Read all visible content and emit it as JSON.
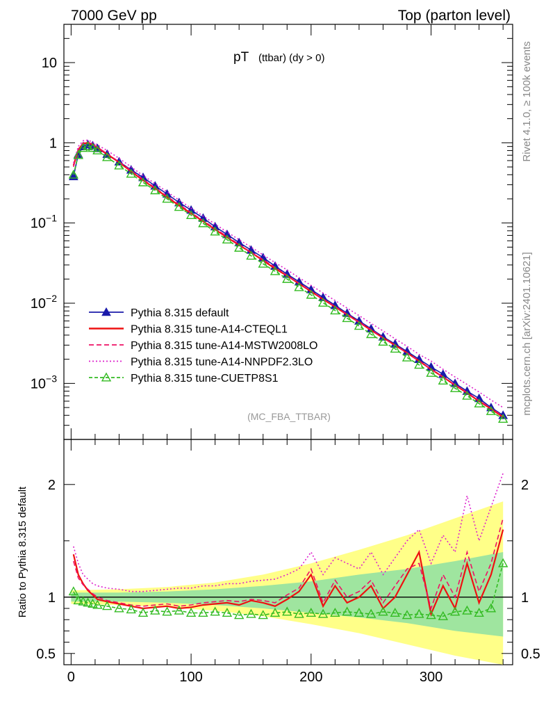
{
  "header": {
    "left": "7000 GeV pp",
    "right": "Top (parton level)"
  },
  "side_labels": {
    "rivet": "Rivet 4.1.0, ≥ 100k events",
    "mcplots": "mcplots.cern.ch [arXiv:2401.10621]"
  },
  "chart_data": [
    {
      "panel": "main",
      "type": "line",
      "title_main": "pT",
      "title_sub": "(ttbar) (dy > 0)",
      "analysis_label": "(MC_FBA_TTBAR)",
      "xlabel": "",
      "ylabel": "",
      "xlim": [
        -6,
        368
      ],
      "ylim": [
        0.0002,
        30
      ],
      "yscale": "log",
      "y_ticks": [
        {
          "value": 10,
          "base": "10",
          "exp": ""
        },
        {
          "value": 1,
          "base": "1",
          "exp": ""
        },
        {
          "value": 0.1,
          "base": "10",
          "exp": "−1"
        },
        {
          "value": 0.01,
          "base": "10",
          "exp": "−2"
        },
        {
          "value": 0.001,
          "base": "10",
          "exp": "−3"
        }
      ],
      "legend_position": "lower-left",
      "series": [
        {
          "name": "Pythia 8.315 default",
          "color": "#1a1aaa",
          "dash": "",
          "marker": "triangle-filled",
          "x": [
            2,
            6,
            10,
            14,
            18,
            22,
            30,
            40,
            50,
            60,
            70,
            80,
            90,
            100,
            110,
            120,
            130,
            140,
            150,
            160,
            170,
            180,
            190,
            200,
            210,
            220,
            230,
            240,
            250,
            260,
            270,
            280,
            290,
            300,
            310,
            320,
            330,
            340,
            350,
            360
          ],
          "y": [
            0.38,
            0.72,
            0.9,
            0.95,
            0.92,
            0.85,
            0.72,
            0.58,
            0.46,
            0.37,
            0.29,
            0.23,
            0.18,
            0.145,
            0.115,
            0.09,
            0.072,
            0.057,
            0.046,
            0.037,
            0.029,
            0.023,
            0.0185,
            0.0148,
            0.0118,
            0.0094,
            0.0075,
            0.006,
            0.0048,
            0.0038,
            0.0031,
            0.0025,
            0.002,
            0.0016,
            0.0013,
            0.001,
            0.0008,
            0.00065,
            0.0005,
            0.0004
          ]
        },
        {
          "name": "Pythia 8.315 tune-A14-CTEQL1",
          "color": "#ee1111",
          "dash": "",
          "marker": "",
          "x": [
            2,
            6,
            10,
            14,
            18,
            22,
            30,
            40,
            50,
            60,
            70,
            80,
            90,
            100,
            110,
            120,
            130,
            140,
            150,
            160,
            170,
            180,
            190,
            200,
            210,
            220,
            230,
            240,
            250,
            260,
            270,
            280,
            290,
            300,
            310,
            320,
            330,
            340,
            350,
            360
          ],
          "y": [
            0.52,
            0.82,
            0.98,
            1.0,
            0.95,
            0.87,
            0.72,
            0.57,
            0.44,
            0.34,
            0.27,
            0.21,
            0.165,
            0.132,
            0.105,
            0.083,
            0.066,
            0.053,
            0.043,
            0.034,
            0.027,
            0.022,
            0.0175,
            0.014,
            0.0112,
            0.009,
            0.0072,
            0.0058,
            0.0046,
            0.0037,
            0.003,
            0.0024,
            0.0019,
            0.0015,
            0.0012,
            0.00095,
            0.00076,
            0.0006,
            0.00048,
            0.00038
          ]
        },
        {
          "name": "Pythia 8.315 tune-A14-MSTW2008LO",
          "color": "#ee1166",
          "dash": "7,4",
          "marker": "",
          "x": [
            2,
            6,
            10,
            14,
            18,
            22,
            30,
            40,
            50,
            60,
            70,
            80,
            90,
            100,
            110,
            120,
            130,
            140,
            150,
            160,
            170,
            180,
            190,
            200,
            210,
            220,
            230,
            240,
            250,
            260,
            270,
            280,
            290,
            300,
            310,
            320,
            330,
            340,
            350,
            360
          ],
          "y": [
            0.5,
            0.84,
            1.0,
            1.02,
            0.96,
            0.88,
            0.73,
            0.58,
            0.45,
            0.35,
            0.275,
            0.215,
            0.17,
            0.135,
            0.107,
            0.085,
            0.068,
            0.054,
            0.043,
            0.035,
            0.028,
            0.0222,
            0.0177,
            0.0142,
            0.0113,
            0.0091,
            0.0073,
            0.0058,
            0.0047,
            0.0037,
            0.003,
            0.0024,
            0.0019,
            0.0015,
            0.0012,
            0.00096,
            0.00077,
            0.00061,
            0.00049,
            0.00039
          ]
        },
        {
          "name": "Pythia 8.315 tune-A14-NNPDF2.3LO",
          "color": "#dd22cc",
          "dash": "2,3",
          "marker": "",
          "x": [
            2,
            6,
            10,
            14,
            18,
            22,
            30,
            40,
            50,
            60,
            70,
            80,
            90,
            100,
            110,
            120,
            130,
            140,
            150,
            160,
            170,
            180,
            190,
            200,
            210,
            220,
            230,
            240,
            250,
            260,
            270,
            280,
            290,
            300,
            310,
            320,
            330,
            340,
            350,
            360
          ],
          "y": [
            0.56,
            0.9,
            1.06,
            1.08,
            1.02,
            0.94,
            0.8,
            0.64,
            0.5,
            0.39,
            0.31,
            0.245,
            0.193,
            0.153,
            0.122,
            0.097,
            0.077,
            0.062,
            0.05,
            0.04,
            0.032,
            0.026,
            0.0208,
            0.0167,
            0.0134,
            0.0108,
            0.0087,
            0.007,
            0.0056,
            0.0045,
            0.0036,
            0.0029,
            0.0023,
            0.0019,
            0.0015,
            0.0012,
            0.00097,
            0.00078,
            0.00062,
            0.0005
          ]
        },
        {
          "name": "Pythia 8.315 tune-CUETP8S1",
          "color": "#33bb22",
          "dash": "5,3",
          "marker": "triangle-open",
          "x": [
            2,
            6,
            10,
            14,
            18,
            22,
            30,
            40,
            50,
            60,
            70,
            80,
            90,
            100,
            110,
            120,
            130,
            140,
            150,
            160,
            170,
            180,
            190,
            200,
            210,
            220,
            230,
            240,
            250,
            260,
            270,
            280,
            290,
            300,
            310,
            320,
            330,
            340,
            350,
            360
          ],
          "y": [
            0.4,
            0.7,
            0.86,
            0.9,
            0.86,
            0.8,
            0.66,
            0.52,
            0.41,
            0.32,
            0.255,
            0.2,
            0.158,
            0.125,
            0.099,
            0.078,
            0.062,
            0.049,
            0.039,
            0.031,
            0.025,
            0.02,
            0.0158,
            0.0127,
            0.0101,
            0.0081,
            0.0065,
            0.0052,
            0.0041,
            0.0033,
            0.0027,
            0.0021,
            0.0017,
            0.00135,
            0.00108,
            0.00087,
            0.0007,
            0.00056,
            0.00045,
            0.00036
          ]
        }
      ]
    },
    {
      "panel": "ratio",
      "type": "line",
      "ylabel": "Ratio to Pythia 8.315 default",
      "xlim": [
        -6,
        368
      ],
      "ylim": [
        0.4,
        2.4
      ],
      "x_ticks": [
        0,
        100,
        200,
        300
      ],
      "y_ticks": [
        0.5,
        1,
        2
      ],
      "reference": 1,
      "band_inner": {
        "color": "#9fe59f",
        "x": [
          0,
          40,
          80,
          120,
          160,
          200,
          240,
          280,
          320,
          360
        ],
        "lo": [
          0.96,
          0.96,
          0.95,
          0.93,
          0.9,
          0.86,
          0.82,
          0.77,
          0.7,
          0.65
        ],
        "hi": [
          1.04,
          1.04,
          1.05,
          1.07,
          1.1,
          1.14,
          1.2,
          1.25,
          1.32,
          1.4
        ]
      },
      "band_outer": {
        "color": "#ffff88",
        "x": [
          0,
          40,
          80,
          120,
          160,
          200,
          240,
          280,
          320,
          360
        ],
        "lo": [
          0.94,
          0.93,
          0.91,
          0.88,
          0.83,
          0.76,
          0.68,
          0.58,
          0.48,
          0.4
        ],
        "hi": [
          1.06,
          1.07,
          1.09,
          1.13,
          1.2,
          1.3,
          1.42,
          1.55,
          1.7,
          1.85
        ]
      },
      "series": [
        {
          "name": "Pythia 8.315 tune-A14-CTEQL1",
          "color": "#ee1111",
          "dash": "",
          "x": [
            2,
            6,
            10,
            14,
            18,
            22,
            30,
            40,
            50,
            60,
            70,
            80,
            90,
            100,
            110,
            120,
            130,
            140,
            150,
            160,
            170,
            180,
            190,
            200,
            210,
            220,
            230,
            240,
            250,
            260,
            270,
            280,
            290,
            300,
            310,
            320,
            330,
            340,
            350,
            360
          ],
          "y": [
            1.38,
            1.2,
            1.12,
            1.06,
            1.02,
            0.98,
            0.96,
            0.94,
            0.92,
            0.9,
            0.91,
            0.92,
            0.9,
            0.91,
            0.93,
            0.94,
            0.95,
            0.93,
            0.97,
            0.95,
            0.92,
            0.98,
            1.05,
            1.2,
            0.92,
            1.1,
            0.95,
            1.0,
            1.1,
            0.9,
            1.0,
            1.2,
            1.4,
            0.85,
            1.1,
            0.9,
            1.3,
            0.95,
            1.2,
            1.6
          ]
        },
        {
          "name": "Pythia 8.315 tune-A14-MSTW2008LO",
          "color": "#ee1166",
          "dash": "7,4",
          "x": [
            2,
            6,
            10,
            14,
            18,
            22,
            30,
            40,
            50,
            60,
            70,
            80,
            90,
            100,
            110,
            120,
            130,
            140,
            150,
            160,
            170,
            180,
            190,
            200,
            210,
            220,
            230,
            240,
            250,
            260,
            270,
            280,
            290,
            300,
            310,
            320,
            330,
            340,
            350,
            360
          ],
          "y": [
            1.32,
            1.17,
            1.11,
            1.07,
            1.03,
            1.0,
            0.97,
            0.95,
            0.93,
            0.92,
            0.93,
            0.94,
            0.92,
            0.93,
            0.95,
            0.96,
            0.97,
            0.96,
            0.98,
            0.97,
            0.95,
            1.02,
            1.08,
            1.25,
            0.95,
            1.15,
            1.0,
            1.05,
            1.15,
            0.95,
            1.1,
            1.25,
            1.3,
            0.9,
            1.2,
            1.0,
            1.4,
            1.05,
            1.3,
            1.7
          ]
        },
        {
          "name": "Pythia 8.315 tune-A14-NNPDF2.3LO",
          "color": "#dd22cc",
          "dash": "2,3",
          "x": [
            2,
            6,
            10,
            14,
            18,
            22,
            30,
            40,
            50,
            60,
            70,
            80,
            90,
            100,
            110,
            120,
            130,
            140,
            150,
            160,
            170,
            180,
            190,
            200,
            210,
            220,
            230,
            240,
            250,
            260,
            270,
            280,
            290,
            300,
            310,
            320,
            330,
            340,
            350,
            360
          ],
          "y": [
            1.45,
            1.3,
            1.2,
            1.16,
            1.12,
            1.1,
            1.08,
            1.07,
            1.05,
            1.05,
            1.06,
            1.07,
            1.08,
            1.08,
            1.1,
            1.1,
            1.12,
            1.12,
            1.14,
            1.15,
            1.16,
            1.2,
            1.25,
            1.4,
            1.2,
            1.35,
            1.3,
            1.25,
            1.4,
            1.2,
            1.35,
            1.5,
            1.6,
            1.3,
            1.55,
            1.4,
            1.9,
            1.5,
            1.8,
            2.1
          ]
        },
        {
          "name": "Pythia 8.315 tune-CUETP8S1",
          "color": "#33bb22",
          "dash": "5,3",
          "x": [
            2,
            6,
            10,
            14,
            18,
            22,
            30,
            40,
            50,
            60,
            70,
            80,
            90,
            100,
            110,
            120,
            130,
            140,
            150,
            160,
            170,
            180,
            190,
            200,
            210,
            220,
            230,
            240,
            250,
            260,
            270,
            280,
            290,
            300,
            310,
            320,
            330,
            340,
            350,
            360
          ],
          "y": [
            1.05,
            0.97,
            0.96,
            0.95,
            0.94,
            0.93,
            0.92,
            0.9,
            0.89,
            0.86,
            0.88,
            0.87,
            0.88,
            0.86,
            0.86,
            0.87,
            0.86,
            0.84,
            0.85,
            0.84,
            0.86,
            0.87,
            0.85,
            0.86,
            0.85,
            0.86,
            0.87,
            0.86,
            0.85,
            0.87,
            0.86,
            0.84,
            0.85,
            0.84,
            0.83,
            0.87,
            0.88,
            0.86,
            0.9,
            1.3
          ]
        }
      ]
    }
  ]
}
